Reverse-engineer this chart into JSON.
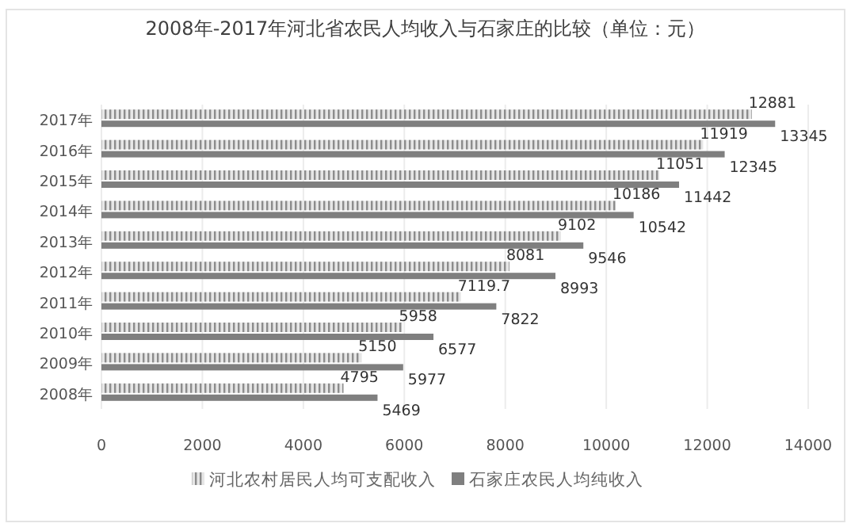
{
  "chart_data": {
    "type": "bar",
    "orientation": "horizontal",
    "title": "2008年-2017年河北省农民人均收入与石家庄的比较（单位：元）",
    "categories": [
      "2017年",
      "2016年",
      "2015年",
      "2014年",
      "2013年",
      "2012年",
      "2011年",
      "2010年",
      "2009年",
      "2008年"
    ],
    "series": [
      {
        "name": "河北农村居民人均可支配收入",
        "color": "#8c8c8c",
        "values": [
          12881,
          11919,
          11051,
          10186,
          9102,
          8081,
          7119.7,
          5958,
          5150,
          4795
        ]
      },
      {
        "name": "石家庄农民人均纯收入",
        "color": "#7f7f7f",
        "values": [
          13345,
          12345,
          11442,
          10542,
          9546,
          8993,
          7822,
          6577,
          5977,
          5469
        ]
      }
    ],
    "xlim": [
      0,
      14000
    ],
    "xticks": [
      0,
      2000,
      4000,
      6000,
      8000,
      10000,
      12000,
      14000
    ],
    "grid": "x",
    "legend": "bottom",
    "data_labels": true
  }
}
